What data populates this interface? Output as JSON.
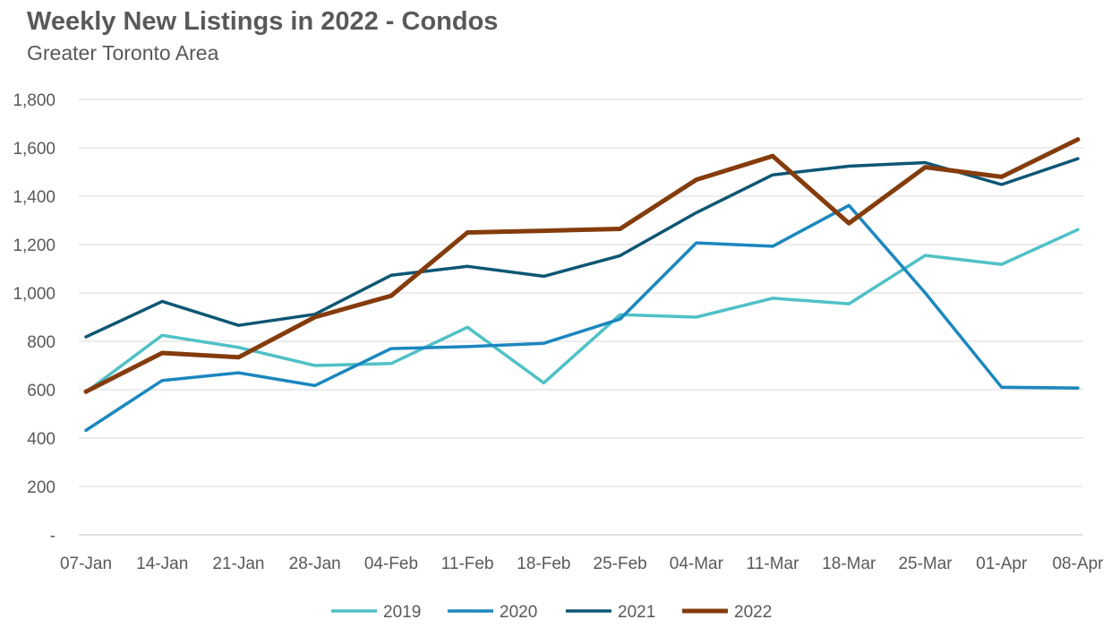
{
  "chart_data": {
    "type": "line",
    "title": "Weekly New Listings in 2022 - Condos",
    "subtitle": "Greater Toronto Area",
    "categories": [
      "07-Jan",
      "14-Jan",
      "21-Jan",
      "28-Jan",
      "04-Feb",
      "11-Feb",
      "18-Feb",
      "25-Feb",
      "04-Mar",
      "11-Mar",
      "18-Mar",
      "25-Mar",
      "01-Apr",
      "08-Apr"
    ],
    "ylim": [
      0,
      1800
    ],
    "yticks": [
      0,
      200,
      400,
      600,
      800,
      1000,
      1200,
      1400,
      1600,
      1800
    ],
    "ytick_labels": [
      "-",
      "200",
      "400",
      "600",
      "800",
      "1,000",
      "1,200",
      "1,400",
      "1,600",
      "1,800"
    ],
    "grid": true,
    "legend_position": "bottom",
    "series": [
      {
        "name": "2019",
        "color": "#4fc1c6",
        "values": [
          590,
          825,
          775,
          700,
          708,
          858,
          628,
          910,
          900,
          978,
          955,
          1155,
          1118,
          1262
        ]
      },
      {
        "name": "2020",
        "color": "#1b87be",
        "values": [
          432,
          638,
          670,
          617,
          770,
          778,
          792,
          892,
          1207,
          1193,
          1362,
          1000,
          610,
          607
        ]
      },
      {
        "name": "2021",
        "color": "#0d5674",
        "values": [
          818,
          965,
          866,
          912,
          1073,
          1110,
          1069,
          1154,
          1332,
          1488,
          1524,
          1539,
          1448,
          1555
        ]
      },
      {
        "name": "2022",
        "color": "#843c0c",
        "values": [
          592,
          752,
          734,
          900,
          988,
          1250,
          1257,
          1265,
          1468,
          1566,
          1288,
          1520,
          1480,
          1635
        ]
      }
    ]
  }
}
